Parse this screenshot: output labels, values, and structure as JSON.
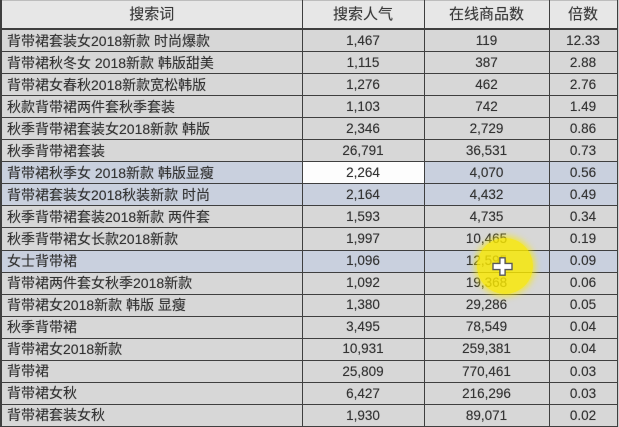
{
  "table": {
    "columns": [
      {
        "key": "term",
        "label": "搜索词"
      },
      {
        "key": "popularity",
        "label": "搜索人气"
      },
      {
        "key": "products",
        "label": "在线商品数"
      },
      {
        "key": "ratio",
        "label": "倍数"
      }
    ],
    "rows": [
      {
        "term": "背带裙套装女2018新款 时尚爆款",
        "popularity": "1,467",
        "products": "119",
        "ratio": "12.33",
        "selected": false,
        "active_cell": null
      },
      {
        "term": "背带裙秋冬女 2018新款 韩版甜美",
        "popularity": "1,115",
        "products": "387",
        "ratio": "2.88",
        "selected": false,
        "active_cell": null
      },
      {
        "term": "背带裙女春秋2018新款宽松韩版",
        "popularity": "1,276",
        "products": "462",
        "ratio": "2.76",
        "selected": false,
        "active_cell": null
      },
      {
        "term": "秋款背带裙两件套秋季套装",
        "popularity": "1,103",
        "products": "742",
        "ratio": "1.49",
        "selected": false,
        "active_cell": null
      },
      {
        "term": "秋季背带裙套装女2018新款 韩版",
        "popularity": "2,346",
        "products": "2,729",
        "ratio": "0.86",
        "selected": false,
        "active_cell": null
      },
      {
        "term": "秋季背带裙套装",
        "popularity": "26,791",
        "products": "36,531",
        "ratio": "0.73",
        "selected": false,
        "active_cell": null
      },
      {
        "term": "背带裙秋季女 2018新款 韩版显瘦",
        "popularity": "2,264",
        "products": "4,070",
        "ratio": "0.56",
        "selected": true,
        "active_cell": "popularity"
      },
      {
        "term": "背带裙套装女2018秋装新款 时尚",
        "popularity": "2,164",
        "products": "4,432",
        "ratio": "0.49",
        "selected": true,
        "active_cell": null
      },
      {
        "term": "秋季背带裙套装2018新款 两件套",
        "popularity": "1,593",
        "products": "4,735",
        "ratio": "0.34",
        "selected": false,
        "active_cell": null
      },
      {
        "term": "秋季背带裙女长款2018新款",
        "popularity": "1,997",
        "products": "10,465",
        "ratio": "0.19",
        "selected": false,
        "active_cell": null
      },
      {
        "term": "女士背带裙",
        "popularity": "1,096",
        "products": "12,595",
        "ratio": "0.09",
        "selected": true,
        "active_cell": null
      },
      {
        "term": "背带裙两件套女秋季2018新款",
        "popularity": "1,092",
        "products": "19,368",
        "ratio": "0.06",
        "selected": false,
        "active_cell": null
      },
      {
        "term": "背带裙女2018新款 韩版 显瘦",
        "popularity": "1,380",
        "products": "29,286",
        "ratio": "0.05",
        "selected": false,
        "active_cell": null
      },
      {
        "term": "秋季背带裙",
        "popularity": "3,495",
        "products": "78,549",
        "ratio": "0.04",
        "selected": false,
        "active_cell": null
      },
      {
        "term": "背带裙女2018新款",
        "popularity": "10,931",
        "products": "259,381",
        "ratio": "0.04",
        "selected": false,
        "active_cell": null
      },
      {
        "term": "背带裙",
        "popularity": "25,809",
        "products": "770,461",
        "ratio": "0.03",
        "selected": false,
        "active_cell": null
      },
      {
        "term": "背带裙女秋",
        "popularity": "6,427",
        "products": "216,296",
        "ratio": "0.03",
        "selected": false,
        "active_cell": null
      },
      {
        "term": "背带裙套装女秋",
        "popularity": "1,930",
        "products": "89,071",
        "ratio": "0.02",
        "selected": false,
        "active_cell": null
      }
    ]
  },
  "cursor": {
    "name": "excel-cell-plus-cursor",
    "highlight_color": "#fae900",
    "cursor_fill": "#ffffff",
    "cursor_outline": "#5a5a5a"
  },
  "colors": {
    "row_bg": "#d7d7d7",
    "selected_row_bg": "#c9d0de",
    "active_cell_bg": "#fdfdfd",
    "header_bg": "#e7e7e7",
    "grid_line": "#3f3f3f",
    "text": "#333333"
  }
}
